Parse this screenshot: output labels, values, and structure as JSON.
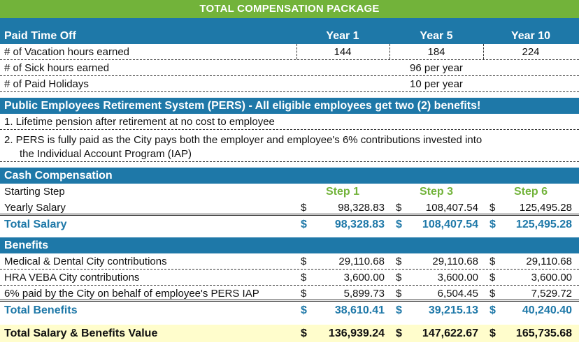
{
  "title": "TOTAL COMPENSATION PACKAGE",
  "pto": {
    "header": "Paid Time Off",
    "year_labels": [
      "Year 1",
      "Year 5",
      "Year 10"
    ],
    "vacation_label": "# of Vacation hours earned",
    "vacation_values": [
      "144",
      "184",
      "224"
    ],
    "sick_label": "# of Sick hours earned",
    "sick_value": "96 per year",
    "holidays_label": "# of Paid Holidays",
    "holidays_value": "10 per year"
  },
  "pers": {
    "header": "Public Employees Retirement System (PERS) - All eligible employees get two (2) benefits!",
    "item1": "1. Lifetime pension after retirement at no cost to employee",
    "item2_line1": "2.  PERS is fully paid as the City pays both the employer and employee's 6% contributions invested into",
    "item2_line2": "the Individual Account Program (IAP)"
  },
  "cash": {
    "header": "Cash Compensation",
    "starting_step_label": "Starting Step",
    "steps": [
      "Step 1",
      "Step 3",
      "Step 6"
    ],
    "yearly_label": "Yearly Salary",
    "yearly_values": [
      "98,328.83",
      "108,407.54",
      "125,495.28"
    ],
    "total_label": "Total Salary",
    "total_values": [
      "98,328.83",
      "108,407.54",
      "125,495.28"
    ],
    "currency": "$"
  },
  "benefits": {
    "header": "Benefits",
    "rows": [
      {
        "label": "Medical & Dental City contributions",
        "values": [
          "29,110.68",
          "29,110.68",
          "29,110.68"
        ]
      },
      {
        "label": "HRA VEBA City contributions",
        "values": [
          "3,600.00",
          "3,600.00",
          "3,600.00"
        ]
      },
      {
        "label": "6% paid by the City on behalf of employee's PERS IAP",
        "values": [
          "5,899.73",
          "6,504.45",
          "7,529.72"
        ]
      }
    ],
    "total_label": "Total Benefits",
    "total_values": [
      "38,610.41",
      "39,215.13",
      "40,240.40"
    ]
  },
  "grand": {
    "label": "Total Salary & Benefits Value",
    "values": [
      "136,939.24",
      "147,622.67",
      "165,735.68"
    ]
  },
  "colors": {
    "title_green": "#72b33a",
    "header_blue": "#1e78a8",
    "grand_yellow": "#fffdcc"
  }
}
